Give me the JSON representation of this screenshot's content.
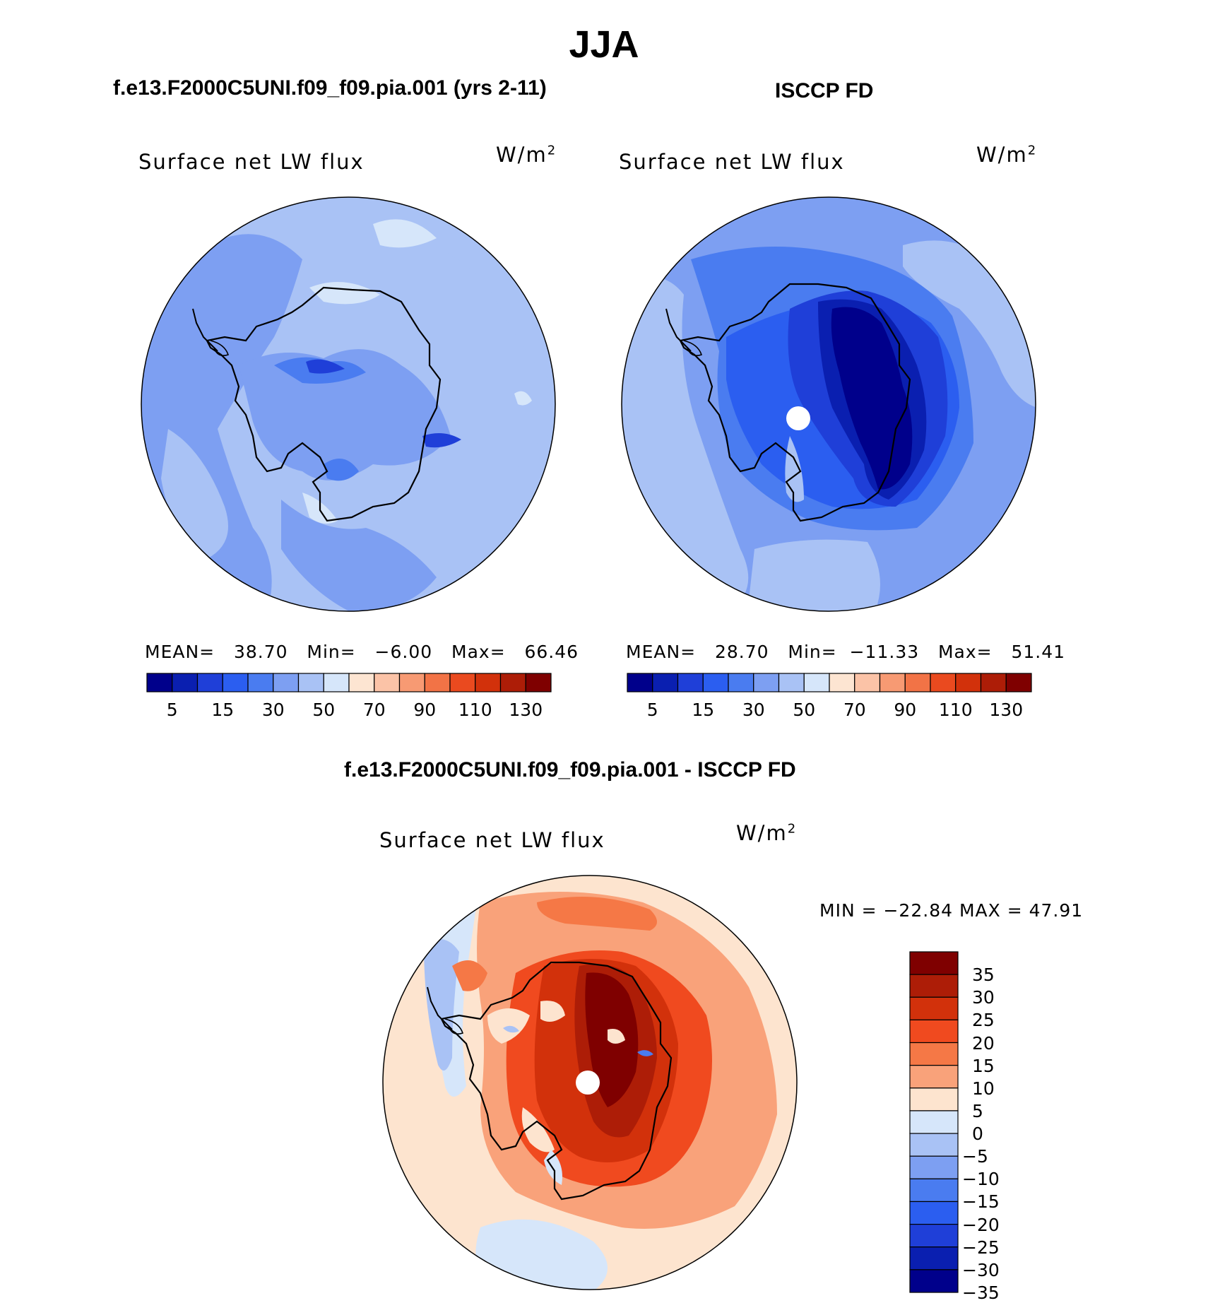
{
  "title": "JJA",
  "panels": {
    "model": {
      "title": "f.e13.F2000C5UNI.f09_f09.pia.001 (yrs 2-11)",
      "variable": "Surface net LW flux",
      "units_base": "W/m",
      "units_sup": "2",
      "mean_label": "MEAN=",
      "mean": "38.70",
      "min_label": "Min=",
      "min": "−6.00",
      "max_label": "Max=",
      "max": "66.46"
    },
    "obs": {
      "title": "ISCCP FD",
      "variable": "Surface net LW flux",
      "units_base": "W/m",
      "units_sup": "2",
      "mean_label": "MEAN=",
      "mean": "28.70",
      "min_label": "Min=",
      "min": "−11.33",
      "max_label": "Max=",
      "max": "51.41"
    },
    "diff": {
      "title": "f.e13.F2000C5UNI.f09_f09.pia.001 - ISCCP FD",
      "variable": "Surface net LW flux",
      "units_base": "W/m",
      "units_sup": "2",
      "minmax": "MIN = −22.84 MAX =   47.91"
    }
  },
  "colorbar_abs": {
    "colors": [
      "#00008b",
      "#0a1fb0",
      "#1f3fd8",
      "#2b5ef0",
      "#4a7cf0",
      "#7d9ff2",
      "#a9c2f5",
      "#d6e6fa",
      "#fde5d2",
      "#fbc3a7",
      "#f79a73",
      "#f27346",
      "#ea4a1f",
      "#d2310b",
      "#ad1d07",
      "#7f0000"
    ],
    "ticks": [
      "5",
      "15",
      "30",
      "50",
      "70",
      "90",
      "110",
      "130"
    ]
  },
  "colorbar_diff": {
    "colors": [
      "#7f0000",
      "#ad1d07",
      "#d2310b",
      "#f04a1f",
      "#f57846",
      "#f9a27a",
      "#fde4cf",
      "#d6e6fa",
      "#a9c2f5",
      "#7d9ff2",
      "#4a7cf0",
      "#2b5ef0",
      "#1f3fd8",
      "#0a1fb0",
      "#00008b"
    ],
    "ticks": [
      "35",
      "30",
      "25",
      "20",
      "15",
      "10",
      "5",
      "0",
      "−5",
      "−10",
      "−15",
      "−20",
      "−25",
      "−30",
      "−35"
    ]
  }
}
